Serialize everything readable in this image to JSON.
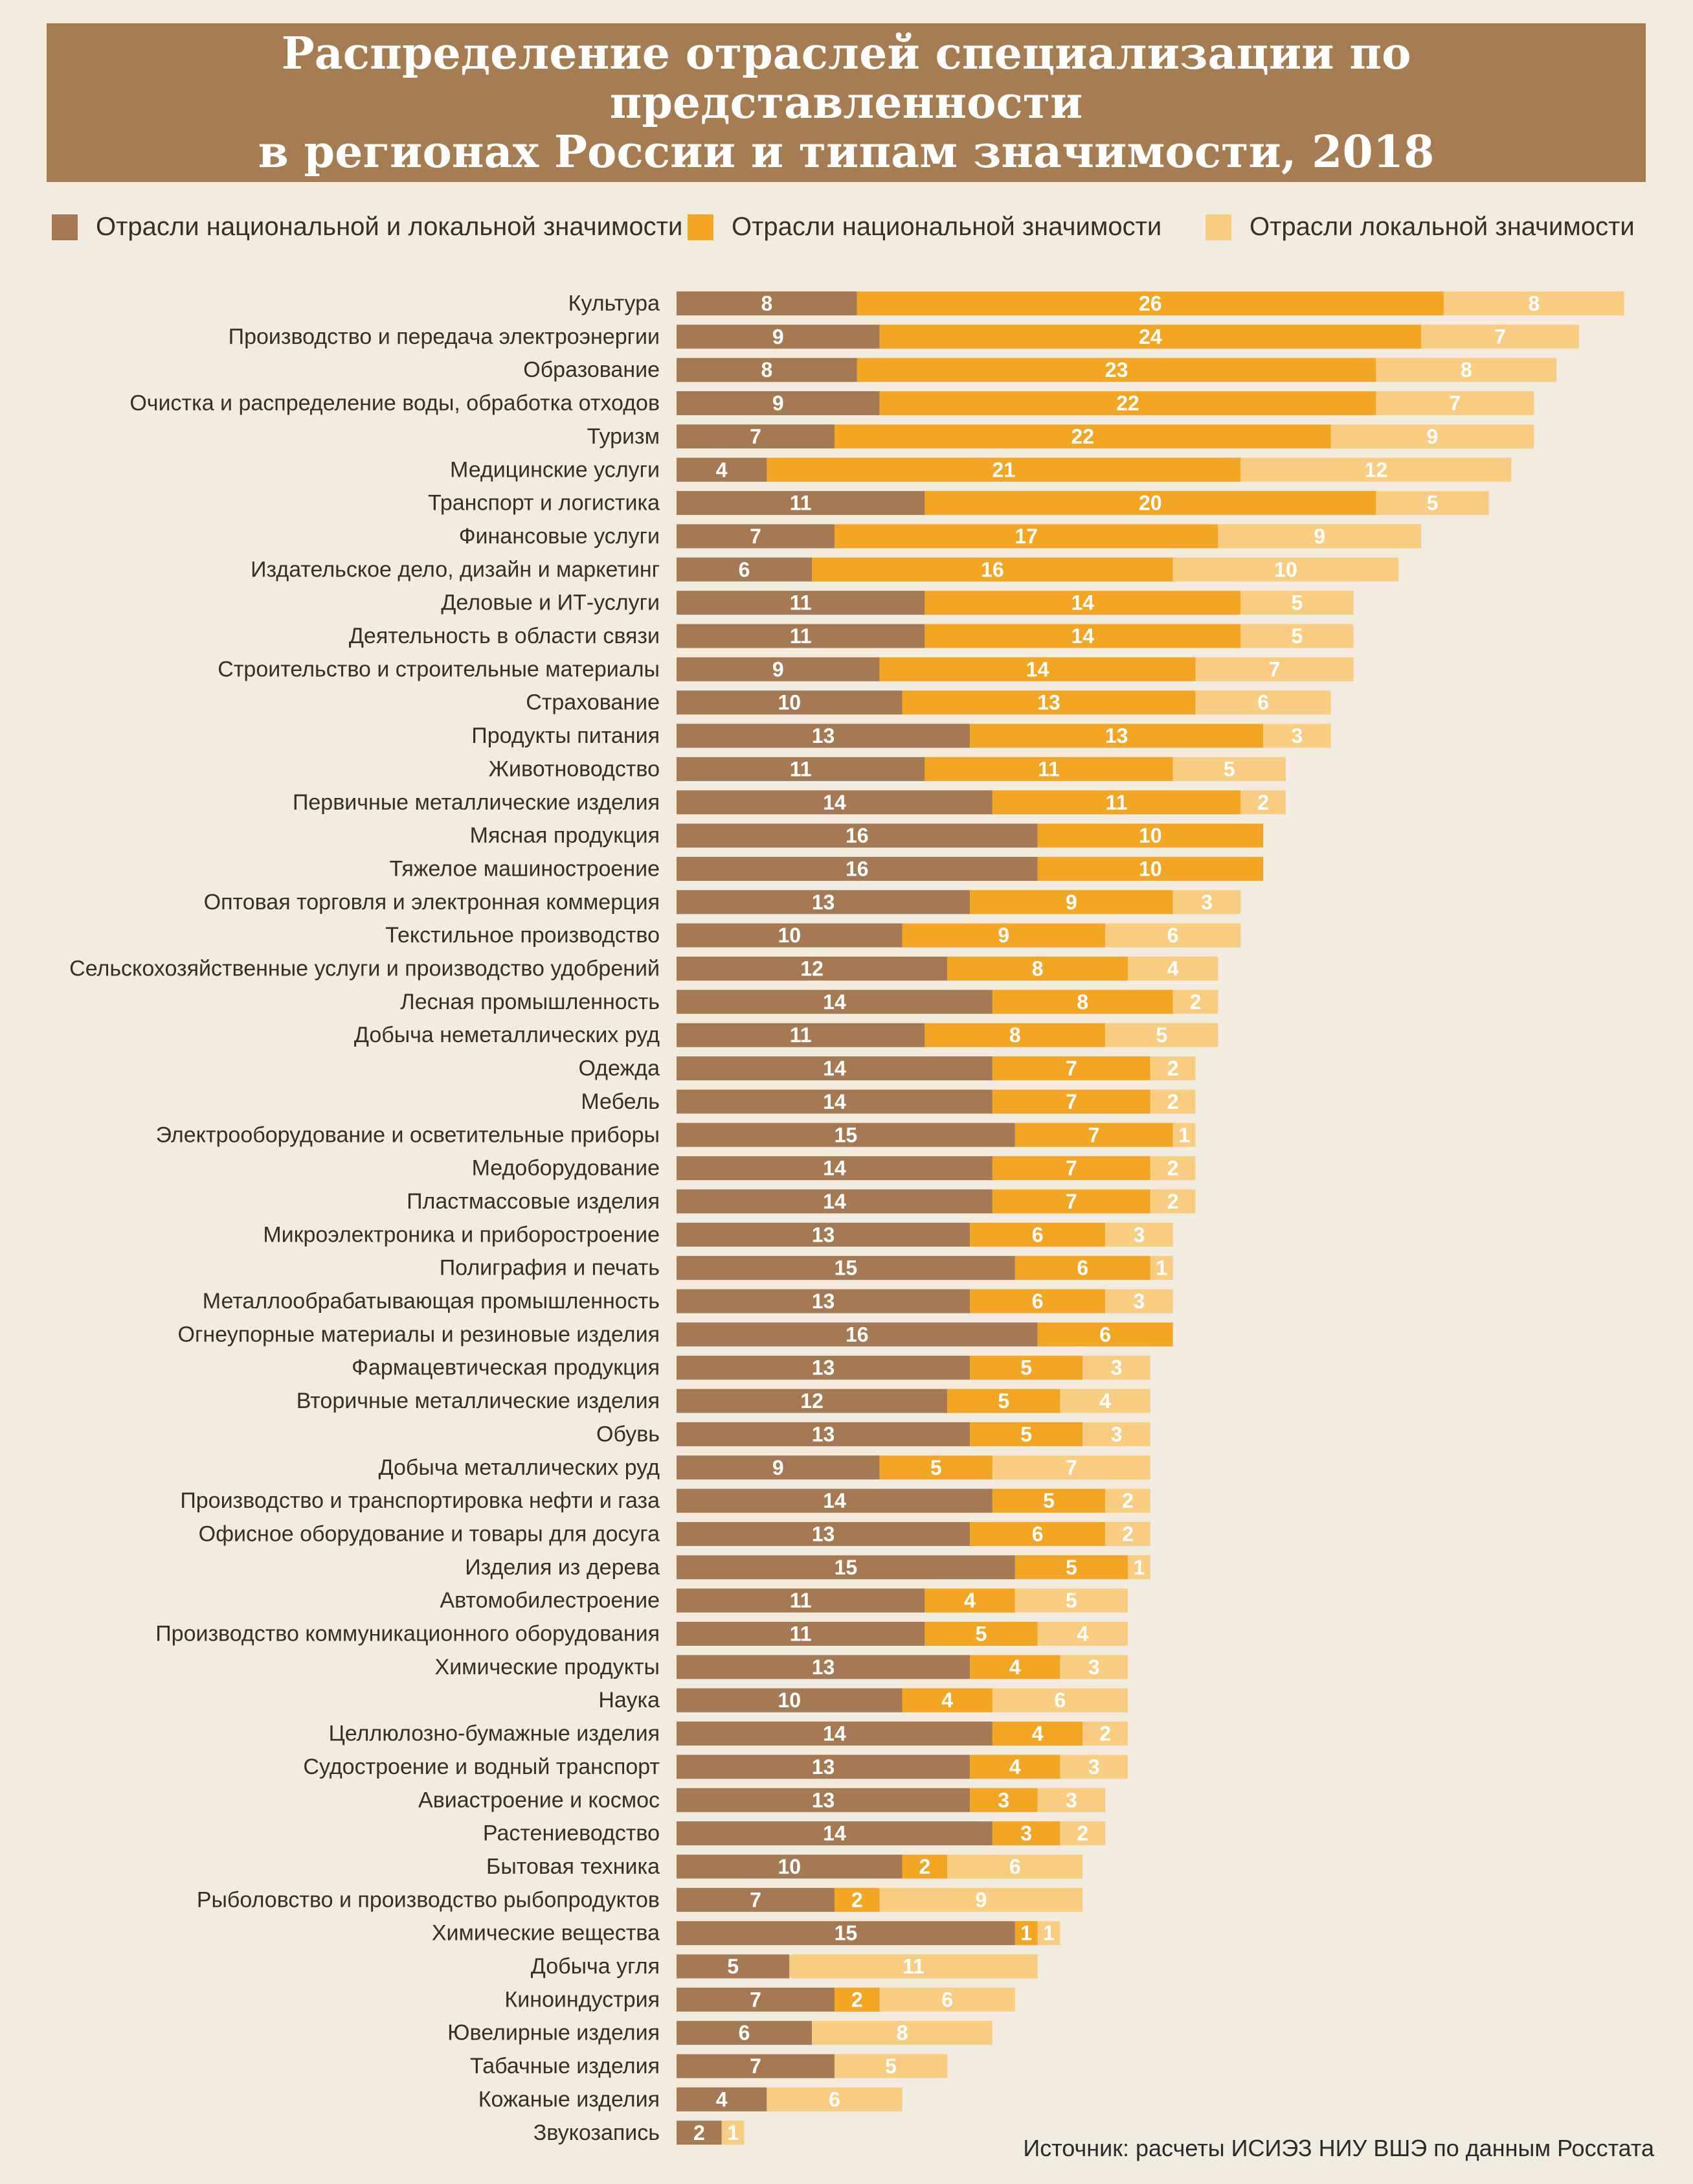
{
  "title": "Распределение отраслей специализации по представленности\nв регионах России и типам значимости, 2018",
  "source": "Источник: расчеты ИСИЭЗ НИУ ВШЭ по данным Росстата",
  "colors": {
    "background": "#f1ebe0",
    "banner": "#a67c52",
    "national_and_local": "#a47953",
    "national": "#f2a623",
    "local": "#f8cd82",
    "label_text": "#3a2d22",
    "value_text": "#ffffff"
  },
  "legend": [
    {
      "name": "Отрасли национальной и локальной значимости",
      "color": "#a47953"
    },
    {
      "name": "Отрасли национальной значимости",
      "color": "#f2a623"
    },
    {
      "name": "Отрасли локальной значимости",
      "color": "#f8cd82"
    }
  ],
  "chart_data": {
    "type": "bar",
    "orientation": "horizontal",
    "stacked": true,
    "title": "Распределение отраслей специализации по представленности\nв регионах России и типам значимости, 2018",
    "xlabel": "",
    "ylabel": "",
    "legend_position": "top",
    "grid": false,
    "categories": [
      "Культура",
      "Производство и передача электроэнергии",
      "Образование",
      "Очистка и распределение воды, обработка отходов",
      "Туризм",
      "Медицинские услуги",
      "Транспорт и логистика",
      "Финансовые услуги",
      "Издательское дело, дизайн и маркетинг",
      "Деловые и ИТ-услуги",
      "Деятельность в области связи",
      "Строительство и строительные материалы",
      "Страхование",
      "Продукты питания",
      "Животноводство",
      "Первичные металлические изделия",
      "Мясная продукция",
      "Тяжелое машиностроение",
      "Оптовая торговля и электронная коммерция",
      "Текстильное производство",
      "Сельскохозяйственные услуги и производство удобрений",
      "Лесная промышленность",
      "Добыча неметаллических руд",
      "Одежда",
      "Мебель",
      "Электрооборудование и осветительные приборы",
      "Медоборудование",
      "Пластмассовые изделия",
      "Микроэлектроника и приборостроение",
      "Полиграфия и печать",
      "Металлообрабатывающая промышленность",
      "Огнеупорные материалы и резиновые изделия",
      "Фармацевтическая продукция",
      "Вторичные металлические изделия",
      "Обувь",
      "Добыча металлических руд",
      "Производство и транспортировка нефти и газа",
      "Офисное оборудование и товары для досуга",
      "Изделия из дерева",
      "Автомобилестроение",
      "Производство коммуникационного оборудования",
      "Химические продукты",
      "Наука",
      "Целлюлозно-бумажные изделия",
      "Судостроение и водный транспорт",
      "Авиастроение и космос",
      "Растениеводство",
      "Бытовая техника",
      "Рыболовство и производство рыбопродуктов",
      "Химические вещества",
      "Добыча угля",
      "Киноиндустрия",
      "Ювелирные изделия",
      "Табачные изделия",
      "Кожаные изделия",
      "Звукозапись"
    ],
    "series": [
      {
        "name": "Отрасли национальной и локальной значимости",
        "values": [
          8,
          9,
          8,
          9,
          7,
          4,
          11,
          7,
          6,
          11,
          11,
          9,
          10,
          13,
          11,
          14,
          16,
          16,
          13,
          10,
          12,
          14,
          11,
          14,
          14,
          15,
          14,
          14,
          13,
          15,
          13,
          16,
          13,
          12,
          13,
          9,
          14,
          13,
          15,
          11,
          11,
          13,
          10,
          14,
          13,
          13,
          14,
          10,
          7,
          15,
          5,
          7,
          6,
          7,
          4,
          2
        ]
      },
      {
        "name": "Отрасли национальной значимости",
        "values": [
          26,
          24,
          23,
          22,
          22,
          21,
          20,
          17,
          16,
          14,
          14,
          14,
          13,
          13,
          11,
          11,
          10,
          10,
          9,
          9,
          8,
          8,
          8,
          7,
          7,
          7,
          7,
          7,
          6,
          6,
          6,
          6,
          5,
          5,
          5,
          5,
          5,
          6,
          5,
          4,
          5,
          4,
          4,
          4,
          4,
          3,
          3,
          2,
          2,
          1,
          0,
          2,
          0,
          0,
          0,
          0
        ]
      },
      {
        "name": "Отрасли локальной значимости",
        "values": [
          8,
          7,
          8,
          7,
          9,
          12,
          5,
          9,
          10,
          5,
          5,
          7,
          6,
          3,
          5,
          2,
          0,
          0,
          3,
          6,
          4,
          2,
          5,
          2,
          2,
          1,
          2,
          2,
          3,
          1,
          3,
          0,
          3,
          4,
          3,
          7,
          2,
          2,
          1,
          5,
          4,
          3,
          6,
          2,
          3,
          3,
          2,
          6,
          9,
          1,
          11,
          6,
          8,
          5,
          6,
          1
        ]
      }
    ]
  }
}
